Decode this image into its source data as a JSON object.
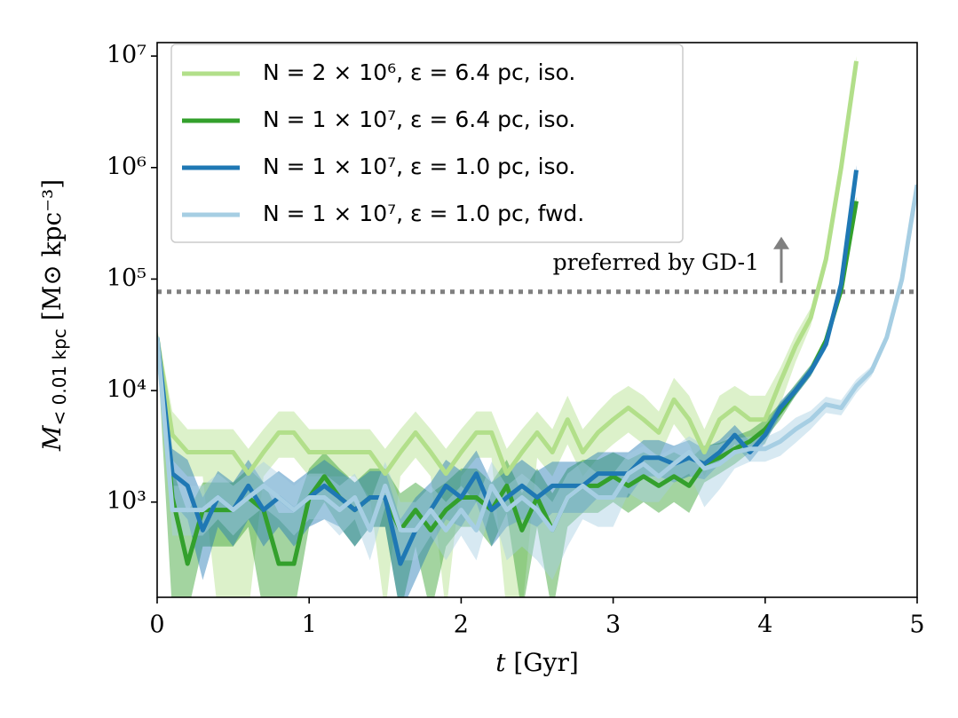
{
  "chart_data": {
    "type": "line",
    "log_y": true,
    "legend": "upper left",
    "xlabel": {
      "symbol": "t",
      "units": "[Gyr]"
    },
    "ylabel": {
      "symbol": "M",
      "subscript": "< 0.01 kpc",
      "units": "[M⊙ kpc⁻³]"
    },
    "xlim": [
      0,
      5
    ],
    "xticks": [
      0,
      1,
      2,
      3,
      4,
      5
    ],
    "ylim": [
      140,
      13200000
    ],
    "yticks": [
      {
        "value": 1000,
        "label": "10³"
      },
      {
        "value": 10000,
        "label": "10⁴"
      },
      {
        "value": 100000,
        "label": "10⁵"
      },
      {
        "value": 1000000,
        "label": "10⁶"
      },
      {
        "value": 10000000,
        "label": "10⁷"
      }
    ],
    "hline": {
      "value": 77000,
      "label": "preferred by GD-1",
      "color": "#808080"
    },
    "series": [
      {
        "name": "N = 2 × 10⁶, ε = 6.4 pc, iso.",
        "color": "#b2df8a",
        "x": [
          0,
          0.1,
          0.2,
          0.3,
          0.4,
          0.5,
          0.6,
          0.7,
          0.8,
          0.9,
          1,
          1.1,
          1.2,
          1.3,
          1.4,
          1.5,
          1.6,
          1.7,
          1.8,
          1.9,
          2,
          2.1,
          2.2,
          2.3,
          2.4,
          2.5,
          2.6,
          2.7,
          2.8,
          2.9,
          3,
          3.1,
          3.2,
          3.3,
          3.4,
          3.5,
          3.6,
          3.7,
          3.8,
          3.9,
          4,
          4.1,
          4.2,
          4.3,
          4.4,
          4.5,
          4.6
        ],
        "values": [
          30000,
          4000,
          2800,
          2800,
          2800,
          2800,
          1800,
          2800,
          4200,
          4200,
          2800,
          2800,
          2800,
          2800,
          2800,
          1800,
          2800,
          4200,
          2800,
          1800,
          2800,
          4200,
          4200,
          1800,
          2800,
          4200,
          2800,
          5500,
          2800,
          4200,
          5500,
          7000,
          5500,
          4200,
          8300,
          5500,
          2800,
          5500,
          7000,
          5500,
          5500,
          12000,
          25000,
          45000,
          150000,
          1000000,
          9000000
        ],
        "lower": [
          25000,
          2400,
          1700,
          1700,
          100,
          100,
          100,
          1700,
          2500,
          2500,
          1700,
          1700,
          1700,
          1700,
          1100,
          100,
          1700,
          2500,
          1700,
          100,
          1700,
          2500,
          2500,
          100,
          100,
          2500,
          1700,
          3300,
          1700,
          2500,
          3300,
          4200,
          3300,
          2500,
          5000,
          3300,
          1700,
          3300,
          4200,
          3300,
          3300,
          7500,
          18000,
          38000,
          130000,
          900000,
          8000000
        ],
        "upper": [
          36000,
          6500,
          4500,
          4500,
          4500,
          4500,
          3000,
          4500,
          6500,
          6500,
          4500,
          4500,
          4500,
          4500,
          4500,
          3000,
          4500,
          6500,
          4500,
          3000,
          4500,
          6500,
          6500,
          3000,
          4500,
          6500,
          4500,
          9000,
          4500,
          6500,
          9000,
          11000,
          9000,
          6500,
          13000,
          9000,
          4500,
          9000,
          11000,
          9000,
          9000,
          16000,
          32000,
          55000,
          180000,
          1150000,
          10000000
        ]
      },
      {
        "name": "N = 1 × 10⁷, ε = 6.4 pc, iso.",
        "color": "#33a02c",
        "x": [
          0,
          0.1,
          0.2,
          0.3,
          0.4,
          0.5,
          0.6,
          0.7,
          0.8,
          0.9,
          1,
          1.1,
          1.2,
          1.3,
          1.4,
          1.5,
          1.6,
          1.7,
          1.8,
          1.9,
          2,
          2.1,
          2.2,
          2.3,
          2.4,
          2.5,
          2.6,
          2.7,
          2.8,
          2.9,
          3,
          3.1,
          3.2,
          3.3,
          3.4,
          3.5,
          3.6,
          3.7,
          3.8,
          3.9,
          4,
          4.1,
          4.2,
          4.3,
          4.4,
          4.5,
          4.6
        ],
        "values": [
          30000,
          1100,
          280,
          850,
          850,
          850,
          1100,
          850,
          280,
          280,
          1100,
          1700,
          1100,
          850,
          1100,
          1100,
          560,
          850,
          560,
          850,
          1100,
          1100,
          850,
          1400,
          560,
          1100,
          560,
          1100,
          1400,
          1400,
          1700,
          1400,
          1700,
          1400,
          1700,
          1400,
          2200,
          2500,
          3000,
          3500,
          4500,
          6500,
          10000,
          15000,
          28000,
          80000,
          500000
        ],
        "lower": [
          25000,
          100,
          100,
          400,
          400,
          400,
          600,
          100,
          100,
          100,
          600,
          1000,
          600,
          400,
          600,
          600,
          100,
          400,
          100,
          400,
          600,
          600,
          400,
          800,
          100,
          600,
          100,
          600,
          800,
          800,
          1000,
          800,
          1000,
          800,
          1000,
          800,
          1500,
          1800,
          2200,
          2800,
          3700,
          5500,
          9000,
          13500,
          25000,
          72000,
          450000
        ],
        "upper": [
          36000,
          2000,
          800,
          1500,
          1500,
          1500,
          2000,
          1500,
          800,
          800,
          2000,
          2800,
          2000,
          1500,
          2000,
          2000,
          1200,
          1500,
          1200,
          1500,
          2000,
          2000,
          1500,
          2400,
          1200,
          2000,
          1200,
          2000,
          2400,
          2400,
          2800,
          2400,
          2800,
          2400,
          2800,
          2400,
          3200,
          3400,
          3900,
          4400,
          5500,
          7700,
          11500,
          17000,
          31000,
          88000,
          550000
        ]
      },
      {
        "name": "N = 1 × 10⁷, ε = 1.0 pc, iso.",
        "color": "#1f78b4",
        "x": [
          0,
          0.1,
          0.2,
          0.3,
          0.4,
          0.5,
          0.6,
          0.7,
          0.8,
          0.9,
          1,
          1.1,
          1.2,
          1.3,
          1.4,
          1.5,
          1.6,
          1.7,
          1.8,
          1.9,
          2,
          2.1,
          2.2,
          2.3,
          2.4,
          2.5,
          2.6,
          2.7,
          2.8,
          2.9,
          3,
          3.1,
          3.2,
          3.3,
          3.4,
          3.5,
          3.6,
          3.7,
          3.8,
          3.9,
          4,
          4.1,
          4.2,
          4.3,
          4.4,
          4.5,
          4.6
        ],
        "values": [
          30000,
          1800,
          1400,
          560,
          1100,
          850,
          1400,
          850,
          1100,
          850,
          1100,
          1400,
          1100,
          850,
          1100,
          1100,
          280,
          560,
          850,
          1400,
          1100,
          1800,
          850,
          1100,
          1400,
          1100,
          1400,
          1400,
          1400,
          1800,
          1800,
          1800,
          2500,
          2500,
          2200,
          2500,
          2200,
          2800,
          4000,
          2800,
          4000,
          7000,
          10000,
          15000,
          26000,
          90000,
          950000
        ],
        "lower": [
          25000,
          1000,
          700,
          200,
          600,
          400,
          700,
          400,
          600,
          400,
          600,
          700,
          600,
          400,
          600,
          600,
          100,
          200,
          400,
          700,
          600,
          1000,
          400,
          600,
          700,
          600,
          800,
          800,
          800,
          1100,
          1100,
          1100,
          1700,
          1700,
          1500,
          1700,
          1600,
          2200,
          3300,
          2300,
          3400,
          6000,
          9000,
          13500,
          23500,
          81000,
          850000
        ],
        "upper": [
          36000,
          3000,
          2400,
          1100,
          1900,
          1500,
          2400,
          1500,
          1900,
          1500,
          1900,
          2400,
          1900,
          1500,
          1900,
          1900,
          700,
          1100,
          1500,
          2400,
          1900,
          2900,
          1500,
          1900,
          2400,
          1900,
          2300,
          2300,
          2300,
          2800,
          2800,
          2800,
          3600,
          3600,
          3200,
          3600,
          3000,
          3600,
          4900,
          3500,
          4700,
          8000,
          11200,
          16700,
          29000,
          100000,
          1050000
        ]
      },
      {
        "name": "N = 1 × 10⁷, ε = 1.0 pc, fwd.",
        "color": "#a6cee3",
        "x": [
          0,
          0.1,
          0.2,
          0.3,
          0.4,
          0.5,
          0.6,
          0.7,
          0.8,
          0.9,
          1,
          1.1,
          1.2,
          1.3,
          1.4,
          1.5,
          1.6,
          1.7,
          1.8,
          1.9,
          2,
          2.1,
          2.2,
          2.3,
          2.4,
          2.5,
          2.6,
          2.7,
          2.8,
          2.9,
          3,
          3.1,
          3.2,
          3.3,
          3.4,
          3.5,
          3.6,
          3.7,
          3.8,
          3.9,
          4,
          4.1,
          4.2,
          4.3,
          4.4,
          4.5,
          4.6,
          4.7,
          4.8,
          4.9,
          5
        ],
        "values": [
          30000,
          850,
          850,
          850,
          1100,
          850,
          1100,
          1400,
          1100,
          850,
          1100,
          1100,
          850,
          1100,
          560,
          1400,
          560,
          560,
          850,
          560,
          850,
          560,
          1400,
          850,
          1100,
          850,
          560,
          1100,
          1400,
          1100,
          1100,
          1800,
          2200,
          1700,
          2200,
          2800,
          2000,
          2200,
          2800,
          3000,
          3000,
          3500,
          4500,
          5500,
          7500,
          7000,
          11000,
          15000,
          30000,
          100000,
          700000
        ],
        "lower": [
          25000,
          500,
          500,
          500,
          700,
          500,
          700,
          900,
          700,
          500,
          700,
          700,
          500,
          700,
          300,
          900,
          300,
          300,
          500,
          300,
          500,
          300,
          900,
          300,
          400,
          300,
          200,
          400,
          700,
          600,
          600,
          1200,
          1000,
          1000,
          1500,
          1800,
          900,
          1300,
          2000,
          2300,
          2300,
          2600,
          3400,
          4500,
          6300,
          6000,
          9500,
          13500,
          27000,
          90000,
          630000
        ],
        "upper": [
          36000,
          1400,
          1400,
          1400,
          1800,
          1400,
          1800,
          2300,
          1800,
          1400,
          1800,
          1800,
          1400,
          1800,
          1000,
          2300,
          1000,
          1000,
          1400,
          1000,
          1400,
          1000,
          2300,
          1400,
          1800,
          1400,
          1000,
          1800,
          2300,
          1800,
          1800,
          2700,
          3200,
          2600,
          3100,
          3900,
          3200,
          3300,
          3700,
          3900,
          3800,
          4400,
          5700,
          6600,
          8800,
          8200,
          12600,
          16500,
          33000,
          110000,
          780000
        ]
      }
    ]
  }
}
